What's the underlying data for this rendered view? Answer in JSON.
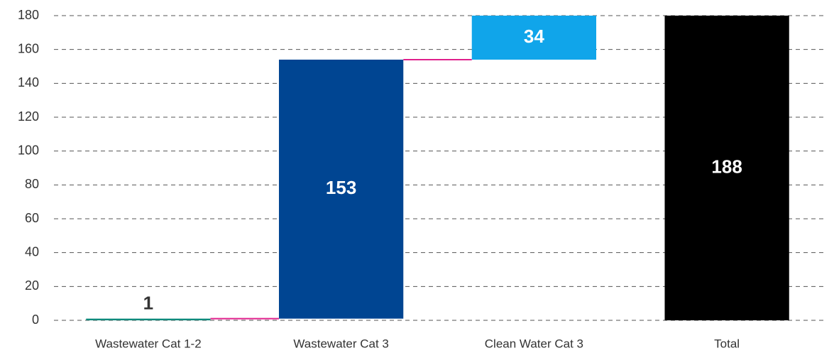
{
  "chart_data": {
    "type": "waterfall",
    "categories": [
      "Wastewater Cat 1-2",
      "Wastewater Cat 3",
      "Clean Water Cat 3",
      "Total"
    ],
    "values": [
      1,
      153,
      34,
      188
    ],
    "is_total": [
      false,
      false,
      false,
      true
    ],
    "colors": [
      "#0e8a7c",
      "#004592",
      "#10a5ea",
      "#000000"
    ],
    "connector_color": "#e0208c",
    "ylim": [
      0,
      180
    ],
    "yticks": [
      0,
      20,
      40,
      60,
      80,
      100,
      120,
      140,
      160,
      180
    ],
    "grid": true
  }
}
